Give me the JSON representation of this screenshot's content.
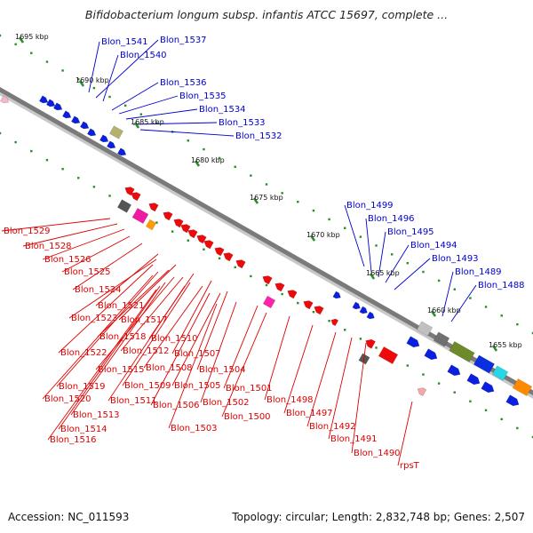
{
  "title": "Bifidobacterium longum subsp. infantis ATCC 15697, complete ...",
  "footer": {
    "accession": "Accession: NC_011593",
    "summary": "Topology: circular; Length: 2,832,748 bp; Genes: 2,507"
  },
  "colors": {
    "forward_label": "#0000cc",
    "reverse_label": "#dd0000",
    "backbone": "#7f7f7f",
    "tick": "#2a8c2a"
  },
  "ticks": [
    "1695 kbp",
    "1690 kbp",
    "1685 kbp",
    "1680 kbp",
    "1675 kbp",
    "1670 kbp",
    "1665 kbp",
    "1660 kbp",
    "1655 kbp"
  ],
  "forward_genes": [
    "Blon_1541",
    "Blon_1537",
    "Blon_1540",
    "Blon_1536",
    "Blon_1535",
    "Blon_1534",
    "Blon_1533",
    "Blon_1532",
    "Blon_1499",
    "Blon_1496",
    "Blon_1495",
    "Blon_1494",
    "Blon_1493",
    "Blon_1489",
    "Blon_1488"
  ],
  "reverse_genes": [
    "Blon_1529",
    "Blon_1528",
    "Blon_1526",
    "Blon_1525",
    "Blon_1524",
    "Blon_1521",
    "Blon_1523",
    "Blon_1517",
    "Blon_1518",
    "Blon_1510",
    "Blon_1522",
    "Blon_1512",
    "Blon_1507",
    "Blon_1515",
    "Blon_1508",
    "Blon_1504",
    "Blon_1519",
    "Blon_1509",
    "Blon_1505",
    "Blon_1501",
    "Blon_1520",
    "Blon_1511",
    "Blon_1502",
    "Blon_1498",
    "Blon_1506",
    "Blon_1513",
    "Blon_1500",
    "Blon_1497",
    "Blon_1514",
    "Blon_1503",
    "Blon_1492",
    "Blon_1516",
    "Blon_1491",
    "Blon_1490",
    "rpsT"
  ]
}
